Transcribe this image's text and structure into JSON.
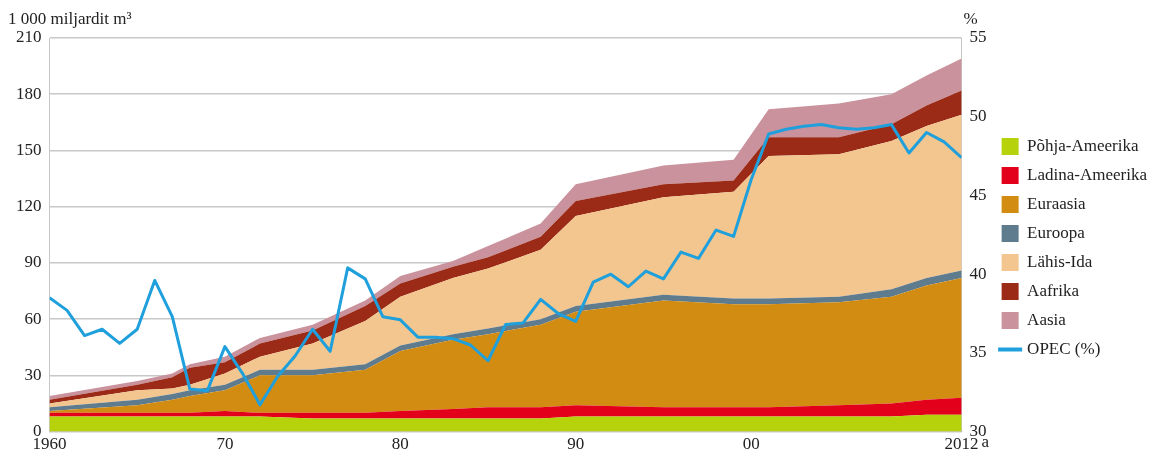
{
  "chart_data": {
    "type": "area",
    "stacked": true,
    "ylabel": "1 000 miljardit m³",
    "y2label": "%",
    "xlabel": "a",
    "x": [
      1960,
      1965,
      1967,
      1968,
      1970,
      1972,
      1975,
      1978,
      1980,
      1983,
      1985,
      1988,
      1990,
      1995,
      1999,
      2001,
      2005,
      2008,
      2010,
      2012
    ],
    "series": [
      {
        "name": "Põhja-Ameerika",
        "color": "#b5d20a",
        "values": [
          8,
          8,
          8,
          8,
          8,
          8,
          7,
          7,
          7,
          7,
          7,
          7,
          8,
          8,
          8,
          8,
          8,
          8,
          9,
          9
        ]
      },
      {
        "name": "Ladina-Ameerika",
        "color": "#e3001b",
        "values": [
          2,
          2,
          2,
          2,
          3,
          2,
          3,
          3,
          4,
          5,
          6,
          6,
          6,
          5,
          5,
          5,
          6,
          7,
          8,
          9
        ]
      },
      {
        "name": "Euraasia",
        "color": "#d28c12",
        "values": [
          1,
          4,
          7,
          9,
          11,
          20,
          20,
          23,
          32,
          37,
          39,
          44,
          50,
          57,
          55,
          55,
          55,
          57,
          61,
          64
        ]
      },
      {
        "name": "Euroopa",
        "color": "#5f7b8e",
        "values": [
          2,
          3,
          3,
          3,
          3,
          3,
          3,
          3,
          3,
          3,
          3,
          3,
          3,
          3,
          3,
          3,
          3,
          4,
          4,
          4
        ]
      },
      {
        "name": "Lähis-Ida",
        "color": "#f2c68e",
        "values": [
          2,
          5,
          3,
          3,
          6,
          7,
          14,
          23,
          26,
          30,
          32,
          37,
          48,
          52,
          57,
          76,
          76,
          79,
          81,
          83
        ]
      },
      {
        "name": "Aafrika",
        "color": "#9b2a17",
        "values": [
          2,
          3,
          6,
          9,
          6,
          7,
          7,
          8,
          7,
          6,
          6,
          7,
          8,
          7,
          6,
          10,
          9,
          9,
          11,
          13
        ]
      },
      {
        "name": "Aasia",
        "color": "#c9929c",
        "values": [
          2,
          2,
          2,
          2,
          3,
          3,
          3,
          3,
          4,
          3,
          6,
          7,
          9,
          10,
          11,
          15,
          18,
          16,
          16,
          17
        ]
      },
      {
        "name": "OPEC (%)",
        "type": "line",
        "axis": "y2",
        "color": "#1fa0dc",
        "x": [
          1960,
          1961,
          1962,
          1963,
          1964,
          1965,
          1966,
          1967,
          1968,
          1969,
          1970,
          1971,
          1972,
          1973,
          1974,
          1975,
          1976,
          1977,
          1978,
          1979,
          1980,
          1981,
          1982,
          1983,
          1984,
          1985,
          1986,
          1987,
          1988,
          1989,
          1990,
          1991,
          1992,
          1993,
          1994,
          1995,
          1996,
          1997,
          1998,
          1999,
          2000,
          2001,
          2002,
          2003,
          2004,
          2005,
          2006,
          2007,
          2008,
          2009,
          2010,
          2011,
          2012
        ],
        "values": [
          38.5,
          37.7,
          36.1,
          36.5,
          35.6,
          36.5,
          39.6,
          37.3,
          32.7,
          32.6,
          35.4,
          33.7,
          31.7,
          33.5,
          34.8,
          36.5,
          35.1,
          40.4,
          39.7,
          37.3,
          37.1,
          36.0,
          36.0,
          35.9,
          35.5,
          34.5,
          36.8,
          36.9,
          38.4,
          37.5,
          37.0,
          39.5,
          40.0,
          39.2,
          40.2,
          39.7,
          41.4,
          41.0,
          42.8,
          42.4,
          46.0,
          48.9,
          49.2,
          49.4,
          49.5,
          49.3,
          49.2,
          49.3,
          49.5,
          47.7,
          49.0,
          48.4,
          47.4
        ]
      }
    ],
    "xlim": [
      1960,
      2012
    ],
    "xticks": [
      1960,
      {
        "value": 1970,
        "label": "70"
      },
      {
        "value": 1980,
        "label": "80"
      },
      {
        "value": 1990,
        "label": "90"
      },
      {
        "value": 2000,
        "label": "00"
      },
      2012
    ],
    "ylim": [
      0,
      210
    ],
    "yticks": [
      0,
      30,
      60,
      90,
      120,
      150,
      180,
      210
    ],
    "y2lim": [
      30,
      55
    ],
    "y2ticks": [
      30,
      35,
      40,
      45,
      50,
      55
    ],
    "grid": "y",
    "legend": "right",
    "marker": "none"
  }
}
